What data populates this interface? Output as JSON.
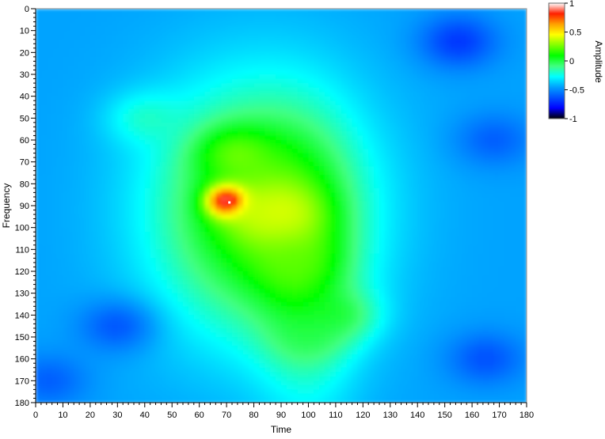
{
  "chart_data": {
    "type": "heatmap",
    "title": "",
    "xlabel": "Time",
    "ylabel": "Frequency",
    "xlim": [
      0,
      180
    ],
    "ylim": [
      0,
      180
    ],
    "y_inverted": true,
    "x_major_ticks": [
      0,
      10,
      20,
      30,
      40,
      50,
      60,
      70,
      80,
      90,
      100,
      110,
      120,
      130,
      140,
      150,
      160,
      170,
      180
    ],
    "y_major_ticks": [
      0,
      10,
      20,
      30,
      40,
      50,
      60,
      70,
      80,
      90,
      100,
      110,
      120,
      130,
      140,
      150,
      160,
      170,
      180
    ],
    "minor_tick_step": 2,
    "grid": false,
    "colorbar": {
      "label": "Amplitude",
      "range": [
        -1,
        1
      ],
      "ticks": [
        1,
        0.5,
        0,
        -0.5,
        -1
      ],
      "tick_labels": [
        "1",
        "0.5",
        "0",
        "-0.5",
        "-1"
      ],
      "colors": [
        "#000000",
        "#0000ff",
        "#0050ff",
        "#00a0ff",
        "#00ffff",
        "#40ff80",
        "#00ff00",
        "#80ff00",
        "#ffff00",
        "#ffa000",
        "#ff2000",
        "#ffffff"
      ],
      "placement": "right"
    },
    "field": {
      "background": -0.45,
      "features": [
        {
          "time": 70,
          "freq": 88,
          "amplitude": 1.0,
          "desc": "peak"
        },
        {
          "time": 72,
          "freq": 88,
          "amplitude": 1.05,
          "desc": "peak core"
        },
        {
          "time": 90,
          "freq": 93,
          "amplitude": 0.45
        },
        {
          "time": 73,
          "freq": 66,
          "amplitude": 0.35
        },
        {
          "time": 82,
          "freq": 95,
          "amplitude": 0.4
        },
        {
          "time": 95,
          "freq": 115,
          "amplitude": 0.2
        },
        {
          "time": 112,
          "freq": 140,
          "amplitude": 0.1
        },
        {
          "time": 100,
          "freq": 150,
          "amplitude": 0.0
        },
        {
          "time": 40,
          "freq": 50,
          "amplitude": -0.1
        },
        {
          "time": 30,
          "freq": 145,
          "amplitude": -0.75
        },
        {
          "time": 155,
          "freq": 15,
          "amplitude": -0.85
        },
        {
          "time": 168,
          "freq": 60,
          "amplitude": -0.7
        },
        {
          "time": 5,
          "freq": 170,
          "amplitude": -0.7
        },
        {
          "time": 165,
          "freq": 160,
          "amplitude": -0.75
        }
      ]
    }
  }
}
